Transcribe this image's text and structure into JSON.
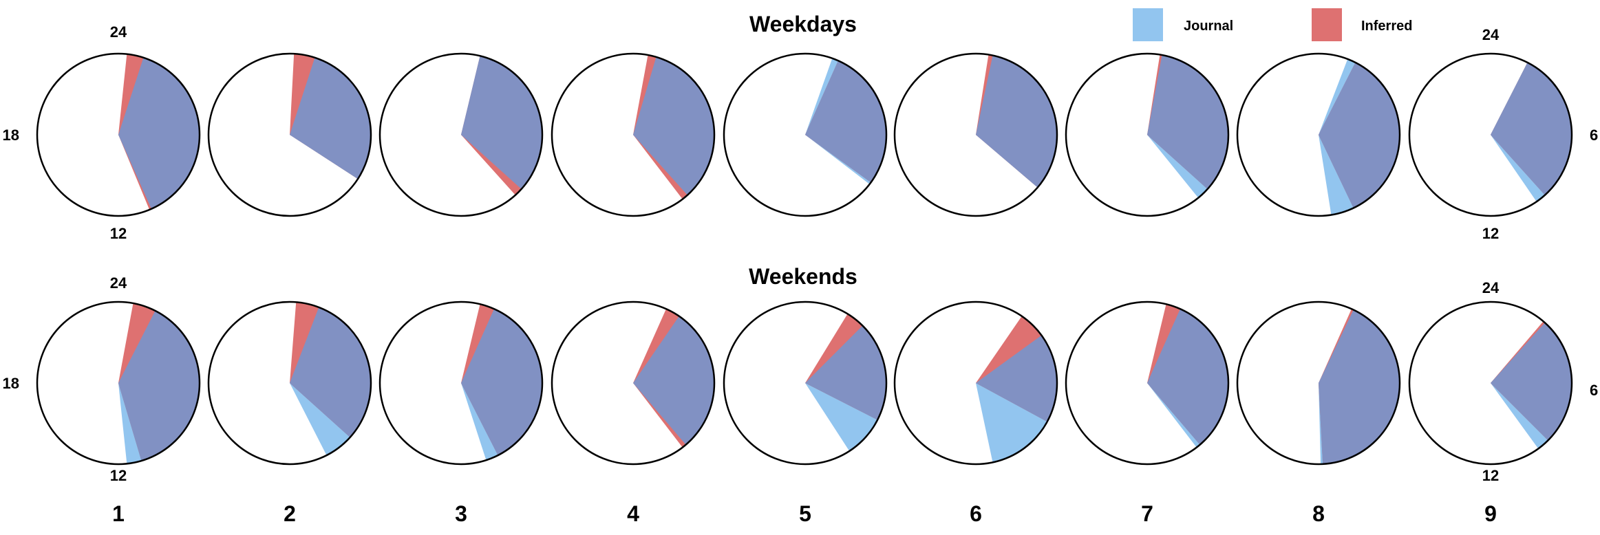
{
  "colors": {
    "journal": "#92c5ef",
    "inferred": "#de7171",
    "overlap": "#8191c3",
    "outline": "#000000",
    "background": "#ffffff"
  },
  "legend": [
    {
      "key": "journal",
      "label": "Journal"
    },
    {
      "key": "inferred",
      "label": "Inferred"
    }
  ],
  "hour_labels": {
    "top": "24",
    "left": "18",
    "bottom": "12",
    "right": "6"
  },
  "chart_data": [
    {
      "type": "pie",
      "title": "Weekdays",
      "clock_hours": 24,
      "categories": [
        "1",
        "2",
        "3",
        "4",
        "5",
        "6",
        "7",
        "8",
        "9"
      ],
      "series": [
        {
          "name": "Journal",
          "ranges": [
            [
              1.2,
              10.4
            ],
            [
              1.2,
              8.2
            ],
            [
              0.9,
              8.8
            ],
            [
              1.1,
              9.2
            ],
            [
              1.3,
              8.5
            ],
            [
              0.8,
              8.7
            ],
            [
              0.7,
              9.4
            ],
            [
              1.4,
              11.4
            ],
            [
              1.8,
              9.7
            ]
          ]
        },
        {
          "name": "Inferred",
          "ranges": [
            [
              0.4,
              10.5
            ],
            [
              0.2,
              8.2
            ],
            [
              0.9,
              9.2
            ],
            [
              0.7,
              9.5
            ],
            [
              1.6,
              8.4
            ],
            [
              0.6,
              8.7
            ],
            [
              0.6,
              8.8
            ],
            [
              1.8,
              10.3
            ],
            [
              1.8,
              9.2
            ]
          ]
        }
      ]
    },
    {
      "type": "pie",
      "title": "Weekends",
      "clock_hours": 24,
      "categories": [
        "1",
        "2",
        "3",
        "4",
        "5",
        "6",
        "7",
        "8",
        "9"
      ],
      "series": [
        {
          "name": "Journal",
          "ranges": [
            [
              1.8,
              11.6
            ],
            [
              1.4,
              10.2
            ],
            [
              1.6,
              10.8
            ],
            [
              2.3,
              9.3
            ],
            [
              3.0,
              9.8
            ],
            [
              3.6,
              11.2
            ],
            [
              1.6,
              9.5
            ],
            [
              1.7,
              11.9
            ],
            [
              2.8,
              9.6
            ]
          ]
        },
        {
          "name": "Inferred",
          "ranges": [
            [
              0.7,
              10.9
            ],
            [
              0.3,
              8.8
            ],
            [
              0.9,
              10.2
            ],
            [
              1.6,
              9.5
            ],
            [
              2.1,
              7.8
            ],
            [
              2.3,
              7.9
            ],
            [
              0.9,
              9.3
            ],
            [
              1.6,
              11.8
            ],
            [
              2.7,
              9.0
            ]
          ]
        }
      ]
    }
  ]
}
